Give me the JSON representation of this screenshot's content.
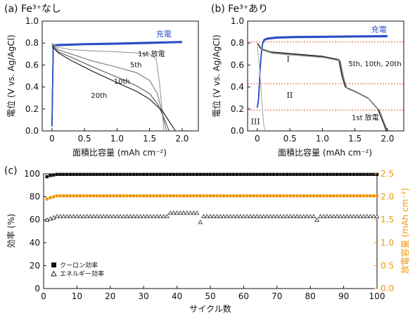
{
  "colors": {
    "charge": "#2b4fc7",
    "efficiency_right": "#f0960a",
    "dashed": "#e0401e",
    "discharge": "#111111"
  },
  "panels": {
    "a": {
      "label": "(a) Fe³⁺なし"
    },
    "b": {
      "label": "(b) Fe³⁺あり"
    },
    "c": {
      "label": "(c)"
    }
  },
  "chart_data": [
    {
      "type": "line",
      "panel": "a",
      "xlabel": "面積比容量 (mAh cm⁻²)",
      "ylabel": "電位 (V vs. Ag/AgCl)",
      "xlim": [
        -0.15,
        2.25
      ],
      "ylim": [
        0,
        1.0
      ],
      "xticks": [
        0,
        0.5,
        1.0,
        1.5,
        2.0
      ],
      "yticks": [
        0.0,
        0.2,
        0.4,
        0.6,
        0.8,
        1.0
      ],
      "xtick_labels": [
        "0",
        "0.5",
        "1.0",
        "1.5",
        "2.0"
      ],
      "ytick_labels": [
        "0.0",
        "0.2",
        "0.4",
        "0.6",
        "0.8",
        "1.0"
      ],
      "series": [
        {
          "name": "充電",
          "x": [
            0,
            0.02,
            0.05,
            0.1,
            0.5,
            1.0,
            1.5,
            2.0
          ],
          "y": [
            0.05,
            0.78,
            0.785,
            0.787,
            0.795,
            0.8,
            0.807,
            0.815
          ]
        },
        {
          "name": "1st 放電",
          "x": [
            0,
            0.1,
            0.3,
            0.6,
            1.0,
            1.3,
            1.5,
            1.6,
            1.65,
            1.7,
            1.72
          ],
          "y": [
            0.8,
            0.76,
            0.74,
            0.73,
            0.72,
            0.71,
            0.7,
            0.66,
            0.45,
            0.15,
            0.0
          ]
        },
        {
          "name": "5th",
          "x": [
            0,
            0.1,
            0.3,
            0.6,
            1.0,
            1.3,
            1.5,
            1.62,
            1.7,
            1.76
          ],
          "y": [
            0.79,
            0.74,
            0.7,
            0.64,
            0.58,
            0.53,
            0.46,
            0.34,
            0.15,
            0.0
          ]
        },
        {
          "name": "10th",
          "x": [
            0,
            0.1,
            0.3,
            0.6,
            1.0,
            1.3,
            1.5,
            1.62,
            1.72,
            1.8
          ],
          "y": [
            0.78,
            0.72,
            0.67,
            0.59,
            0.49,
            0.41,
            0.34,
            0.25,
            0.12,
            0.0
          ]
        },
        {
          "name": "20th",
          "x": [
            0,
            0.1,
            0.3,
            0.6,
            1.0,
            1.3,
            1.5,
            1.7,
            1.82,
            1.9
          ],
          "y": [
            0.77,
            0.71,
            0.64,
            0.55,
            0.44,
            0.36,
            0.29,
            0.18,
            0.07,
            0.0
          ]
        }
      ],
      "annotations": [
        {
          "text": "充電",
          "x": 1.6,
          "y": 0.86
        },
        {
          "text": "1st 放電",
          "x": 1.32,
          "y": 0.68
        },
        {
          "text": "5th",
          "x": 1.2,
          "y": 0.58
        },
        {
          "text": "10th",
          "x": 0.95,
          "y": 0.43
        },
        {
          "text": "20th",
          "x": 0.6,
          "y": 0.3
        }
      ]
    },
    {
      "type": "line",
      "panel": "b",
      "xlabel": "面積比容量 (mAh cm⁻²)",
      "ylabel": "電位 (V vs. Ag/AgCl)",
      "xlim": [
        -0.15,
        2.25
      ],
      "ylim": [
        0,
        1.0
      ],
      "xticks": [
        0,
        0.5,
        1.0,
        1.5,
        2.0
      ],
      "yticks": [
        0.0,
        0.2,
        0.4,
        0.6,
        0.8,
        1.0
      ],
      "xtick_labels": [
        "0",
        "0.5",
        "1.0",
        "1.5",
        "2.0"
      ],
      "ytick_labels": [
        "0.0",
        "0.2",
        "0.4",
        "0.6",
        "0.8",
        "1.0"
      ],
      "dashed_levels": [
        0.81,
        0.43,
        0.19
      ],
      "series": [
        {
          "name": "充電",
          "x": [
            0,
            0.02,
            0.04,
            0.06,
            0.08,
            0.1,
            0.15,
            0.3,
            0.6,
            1.0,
            1.5,
            2.0
          ],
          "y": [
            0.22,
            0.3,
            0.55,
            0.7,
            0.8,
            0.83,
            0.845,
            0.855,
            0.86,
            0.862,
            0.865,
            0.868
          ]
        },
        {
          "name": "1st 放電",
          "x": [
            0,
            0.03,
            0.08,
            0.1,
            0.12
          ],
          "y": [
            0.78,
            0.6,
            0.18,
            0.05,
            0.0
          ]
        },
        {
          "name": "5th, 10th, 20th",
          "x": [
            0,
            0.05,
            0.2,
            0.6,
            1.0,
            1.25,
            1.3,
            1.35,
            1.5,
            1.7,
            1.85,
            1.95,
            1.98
          ],
          "y": [
            0.8,
            0.75,
            0.72,
            0.7,
            0.68,
            0.65,
            0.5,
            0.4,
            0.36,
            0.3,
            0.2,
            0.05,
            0.0
          ]
        }
      ],
      "region_labels": [
        "I",
        "II",
        "III"
      ],
      "annotations": [
        {
          "text": "充電",
          "x": 1.75,
          "y": 0.9
        },
        {
          "text": "5th, 10th, 20th",
          "x": 1.4,
          "y": 0.59
        },
        {
          "text": "1st 放電",
          "x": 1.45,
          "y": 0.1
        }
      ]
    },
    {
      "type": "scatter",
      "panel": "c",
      "xlabel": "サイクル数",
      "ylabel": "効率 (%)",
      "ylabel_right": "放電容量 (mAh cm⁻²)",
      "xlim": [
        0,
        100
      ],
      "ylim": [
        0,
        100
      ],
      "ylim_right": [
        0,
        2.5
      ],
      "xticks": [
        0,
        10,
        20,
        30,
        40,
        50,
        60,
        70,
        80,
        90,
        100
      ],
      "yticks": [
        0,
        20,
        40,
        60,
        80,
        100
      ],
      "yticks_right": [
        0.0,
        0.5,
        1.0,
        1.5,
        2.0,
        2.5
      ],
      "xtick_labels": [
        "0",
        "10",
        "20",
        "30",
        "40",
        "50",
        "60",
        "70",
        "80",
        "90",
        "100"
      ],
      "ytick_labels": [
        "0",
        "20",
        "40",
        "60",
        "80",
        "100"
      ],
      "ytick_labels_right": [
        "0.0",
        "0.5",
        "1.0",
        "1.5",
        "2.0",
        "2.5"
      ],
      "series": [
        {
          "name": "クーロン効率",
          "marker": "square",
          "x_start": 1,
          "x_end": 100,
          "value": 99.5,
          "first_values": [
            97.5,
            98.5,
            99.0
          ]
        },
        {
          "name": "エネルギー効率",
          "marker": "triangle",
          "x_start": 1,
          "x_end": 100,
          "value": 63,
          "first_values": [
            60,
            61,
            62
          ],
          "dips": [
            [
              47,
              58
            ],
            [
              82,
              60
            ]
          ],
          "bump_range": [
            38,
            46
          ],
          "bump_value": 66
        },
        {
          "name": "放電容量",
          "axis": "right",
          "marker": "circle",
          "x_start": 1,
          "x_end": 100,
          "value": 2.02,
          "first_values": [
            1.95,
            1.98,
            2.0
          ]
        }
      ],
      "legend": {
        "placement": "bottom-left",
        "entries": [
          "クーロン効率",
          "エネルギー効率"
        ]
      }
    }
  ]
}
